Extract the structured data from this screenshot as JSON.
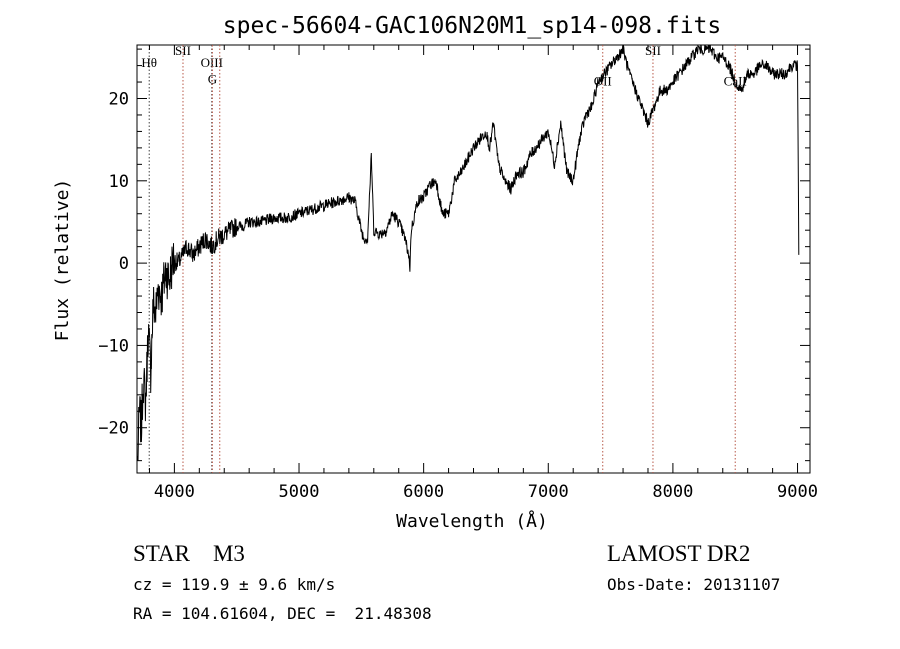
{
  "chart_data": {
    "type": "line",
    "title": "spec-56604-GAC106N20M1_sp14-098.fits",
    "xlabel": "Wavelength (Å)",
    "ylabel": "Flux (relative)",
    "xlim": [
      3700,
      9100
    ],
    "ylim": [
      -25.5,
      26.5
    ],
    "xticks": [
      4000,
      5000,
      6000,
      7000,
      8000,
      9000
    ],
    "xtick_labels": [
      "4000",
      "5000",
      "6000",
      "7000",
      "8000",
      "9000"
    ],
    "yticks": [
      -20,
      -10,
      0,
      10,
      20
    ],
    "ytick_labels": [
      "−20",
      "−10",
      "0",
      "10",
      "20"
    ],
    "grid": false,
    "series": [
      {
        "x": [
          3705,
          3720,
          3735,
          3750,
          3770,
          3790,
          3810,
          3830,
          3850,
          3870,
          3900,
          3930,
          3960,
          3990,
          4030,
          4070,
          4100,
          4150,
          4200,
          4250,
          4300,
          4350,
          4400,
          4450,
          4500,
          4550,
          4600,
          4700,
          4800,
          4900,
          5000,
          5100,
          5200,
          5300,
          5400,
          5450,
          5500,
          5520,
          5550,
          5580,
          5600,
          5650,
          5700,
          5750,
          5800,
          5850,
          5880,
          5890,
          5900,
          5950,
          6000,
          6050,
          6100,
          6150,
          6200,
          6250,
          6300,
          6400,
          6450,
          6500,
          6530,
          6560,
          6600,
          6650,
          6700,
          6750,
          6800,
          6850,
          6900,
          6950,
          7000,
          7050,
          7100,
          7150,
          7200,
          7250,
          7300,
          7350,
          7400,
          7450,
          7500,
          7550,
          7600,
          7650,
          7700,
          7750,
          7800,
          7850,
          7900,
          7950,
          8000,
          8050,
          8100,
          8150,
          8200,
          8250,
          8300,
          8350,
          8400,
          8450,
          8500,
          8550,
          8600,
          8650,
          8700,
          8750,
          8800,
          8850,
          8900,
          8950,
          9000,
          9010
        ],
        "y": [
          -24,
          -18,
          -20,
          -14,
          -17,
          -8,
          -13,
          -5,
          -6,
          -3,
          -4,
          -1,
          -2,
          0.5,
          0,
          1,
          2,
          1,
          2,
          3,
          2,
          3,
          3.5,
          4,
          4.5,
          4.5,
          5,
          5,
          5.5,
          5.5,
          6,
          6.5,
          7,
          7.5,
          8,
          7.5,
          4,
          3,
          3,
          13,
          4,
          3.5,
          4,
          6,
          5,
          3,
          1,
          -0.5,
          4,
          7.5,
          8,
          9.5,
          10,
          6,
          6,
          10,
          11,
          14,
          15,
          16,
          14,
          17,
          12,
          10,
          9,
          11,
          11,
          13,
          14,
          15,
          16,
          12,
          17,
          11,
          10,
          15,
          18,
          19,
          22,
          23,
          24,
          25,
          26,
          23,
          21,
          19,
          17,
          19,
          21,
          21,
          22,
          23,
          24,
          25,
          26,
          26,
          26,
          25,
          25,
          24,
          22,
          21,
          23,
          23,
          24,
          24,
          23,
          23,
          23,
          24,
          24,
          1
        ]
      }
    ],
    "line_markers": [
      {
        "label": "Hθ",
        "x": 3798,
        "color": "#444444",
        "style": "dotted",
        "label_y": 23.8
      },
      {
        "label": "SII",
        "x": 4069,
        "color": "#b85a4a",
        "style": "dotted",
        "label_y": 25.3
      },
      {
        "label": "OIII",
        "x": 4300,
        "color": "#444444",
        "style": "dotted",
        "label_y": 23.8
      },
      {
        "label": "G",
        "x": 4305,
        "color": "#b85a4a",
        "style": "dotted",
        "label_y": 21.8
      },
      {
        "label": "",
        "x": 4364,
        "color": "#b85a4a",
        "style": "dotted",
        "label_y": null
      },
      {
        "label": "OII",
        "x": 7437,
        "color": "#b85a4a",
        "style": "dotted",
        "label_y": 21.6
      },
      {
        "label": "SII",
        "x": 7840,
        "color": "#b85a4a",
        "style": "dotted",
        "label_y": 25.3
      },
      {
        "label": "CaII",
        "x": 8500,
        "color": "#b85a4a",
        "style": "dotted",
        "label_y": 21.6
      }
    ]
  },
  "info": {
    "class_line": "STAR    M3",
    "survey_line": "LAMOST DR2",
    "cz_line": "cz = 119.9 ± 9.6 km/s",
    "date_line": "Obs-Date: 20131107",
    "coords_line": "RA = 104.61604, DEC =  21.48308"
  }
}
